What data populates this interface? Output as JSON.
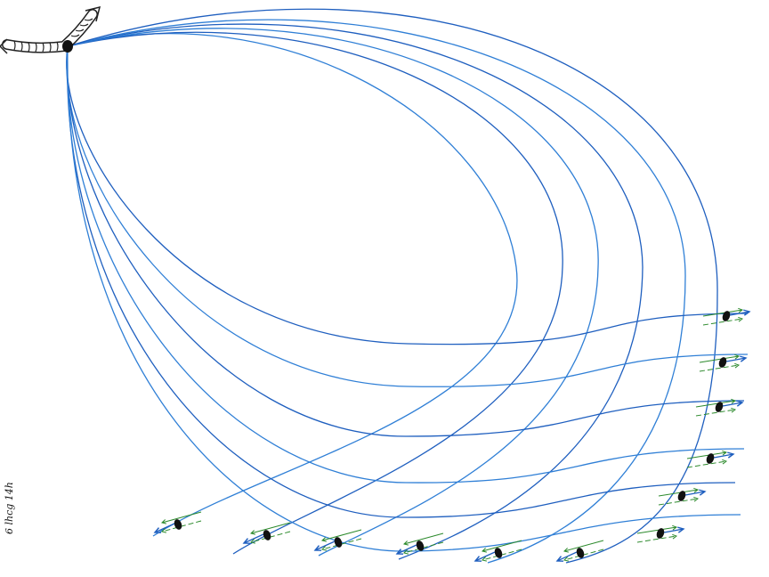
{
  "drawing": {
    "colors": {
      "field_line": "#2f7fd6",
      "field_line_dark": "#1f5fbf",
      "arrow_green": "#2c8a2c",
      "tube_outline": "#222222",
      "tube_fill": "#ffffff",
      "particle": "#111111",
      "paper": "#ffffff"
    },
    "source_icon": "curved-tube-with-arrow-icon",
    "particle_icon": "black-oval-particle-icon",
    "signature_text": "6 lhcg 14h"
  }
}
